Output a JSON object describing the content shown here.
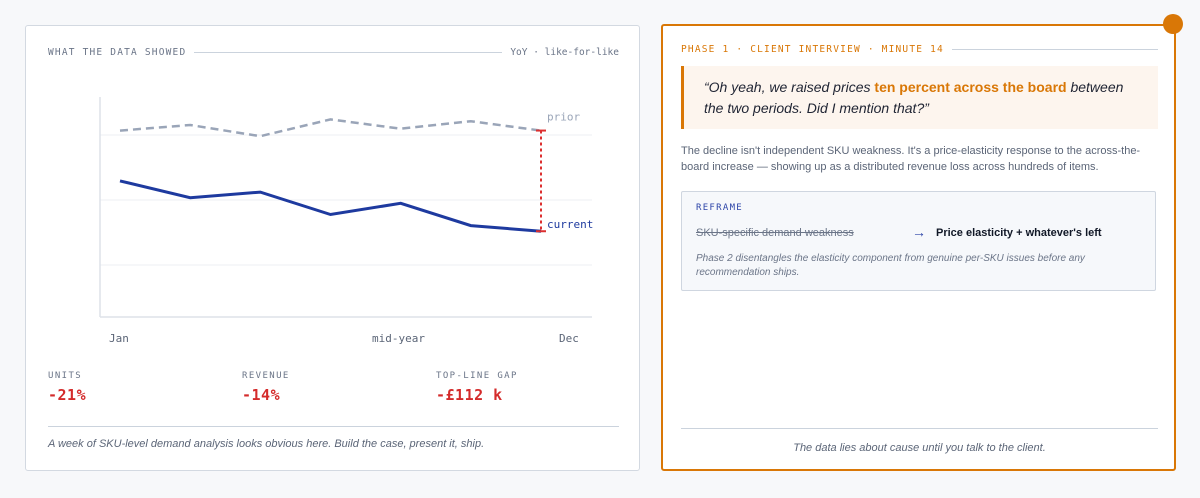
{
  "left_panel": {
    "eyebrow": "WHAT THE DATA SHOWED",
    "eyebrow_right": "YoY · like-for-like",
    "stats": [
      {
        "label": "UNITS",
        "value": "-21%"
      },
      {
        "label": "REVENUE",
        "value": "-14%"
      },
      {
        "label": "TOP-LINE GAP",
        "value": "-£112 k"
      }
    ],
    "caption": "A week of SKU-level demand analysis looks obvious here. Build the case, present it, ship."
  },
  "right_panel": {
    "eyebrow": "PHASE 1 · CLIENT INTERVIEW · MINUTE 14",
    "quote": {
      "before": "“Oh yeah, we raised prices ",
      "highlight": "ten percent across the board",
      "after": " between the two periods. Did I mention that?”"
    },
    "explanation": "The decline isn't independent SKU weakness. It's a price-elasticity response to the across-the-board increase — showing up as a distributed revenue loss across hundreds of items.",
    "reframe": {
      "label": "REFRAME",
      "old": "SKU-specific demand weakness",
      "arrow": "→",
      "new": "Price elasticity + whatever's left",
      "note": "Phase 2 disentangles the elasticity component from genuine per-SKU issues before any recommendation ships."
    },
    "caption": "The data lies about cause until you talk to the client."
  },
  "colors": {
    "accent": "#d97706",
    "current_line": "#1e3a9f",
    "prior_line": "#9aa5b8",
    "gap_marker": "#dc2f2f",
    "negative": "#d42b2b"
  },
  "chart_data": {
    "type": "line",
    "title": "WHAT THE DATA SHOWED",
    "subtitle": "YoY · like-for-like",
    "x": [
      "Jan",
      "",
      "",
      "mid-year",
      "",
      "",
      "Dec"
    ],
    "x_tick_labels": [
      "Jan",
      "mid-year",
      "Dec"
    ],
    "series": [
      {
        "name": "prior",
        "style": "dashed",
        "values": [
          100,
          103,
          97,
          106,
          101,
          105,
          100
        ]
      },
      {
        "name": "current",
        "style": "solid",
        "values": [
          73,
          64,
          67,
          55,
          61,
          49,
          46
        ]
      }
    ],
    "annotations": [
      {
        "type": "gap",
        "at": "Dec",
        "from": "prior",
        "to": "current",
        "style": "dotted red"
      }
    ],
    "xlabel": "",
    "ylabel": "",
    "grid": true,
    "legend": "inline end labels",
    "ylim": [
      0,
      118
    ]
  }
}
